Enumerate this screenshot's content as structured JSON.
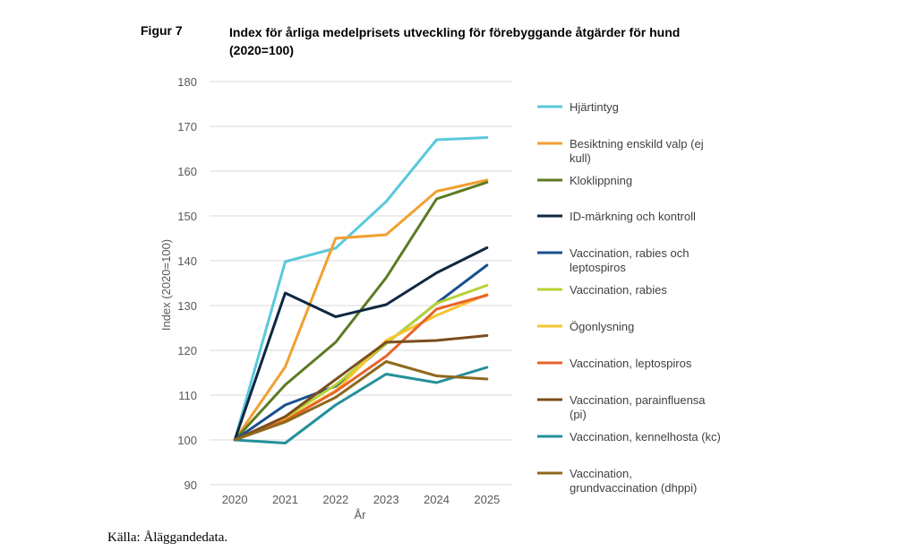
{
  "figure": {
    "label": "Figur 7",
    "title_line1": "Index för årliga medelprisets utveckling för förebyggande åtgärder för hund",
    "title_line2": "(2020=100)"
  },
  "source": "Källa: Åläggandedata.",
  "chart_data": {
    "type": "line",
    "title": "Index för årliga medelprisets utveckling för förebyggande åtgärder för hund (2020=100)",
    "xlabel": "År",
    "ylabel": "Index (2020=100)",
    "ylim": [
      90,
      180
    ],
    "yticks": [
      90,
      100,
      110,
      120,
      130,
      140,
      150,
      160,
      170,
      180
    ],
    "grid": true,
    "legend_position": "right",
    "categories": [
      "2020",
      "2021",
      "2022",
      "2023",
      "2024",
      "2025"
    ],
    "series": [
      {
        "name": "Hjärtintyg",
        "legend_lines": [
          "Hjärtintyg"
        ],
        "color": "#5ac8dc",
        "values": [
          100,
          139.8,
          142.8,
          153.2,
          167,
          167.5
        ]
      },
      {
        "name": "Besiktning enskild valp (ej kull)",
        "legend_lines": [
          "Besiktning enskild valp (ej",
          "kull)"
        ],
        "color": "#f0a030",
        "values": [
          100,
          116.3,
          145,
          145.8,
          155.5,
          158
        ]
      },
      {
        "name": "Kloklippning",
        "legend_lines": [
          "Kloklippning"
        ],
        "color": "#5c7a22",
        "values": [
          100,
          112.3,
          121.8,
          136.2,
          153.8,
          157.5
        ]
      },
      {
        "name": "ID-märkning och kontroll",
        "legend_lines": [
          "ID-märkning och kontroll"
        ],
        "color": "#0f2742",
        "values": [
          100,
          132.8,
          127.5,
          130.2,
          137.3,
          142.9
        ]
      },
      {
        "name": "Vaccination, rabies och leptospiros",
        "legend_lines": [
          "Vaccination, rabies och",
          "leptospiros"
        ],
        "color": "#1a4f8c",
        "values": [
          100,
          107.8,
          112,
          121.5,
          130.5,
          139
        ]
      },
      {
        "name": "Vaccination, rabies",
        "legend_lines": [
          "Vaccination, rabies"
        ],
        "color": "#b5d334",
        "values": [
          100,
          105,
          112.3,
          121.5,
          130.5,
          134.5
        ]
      },
      {
        "name": "Ögonlysning",
        "legend_lines": [
          "Ögonlysning"
        ],
        "color": "#f8c430",
        "values": [
          100,
          104.5,
          111,
          122.2,
          127.8,
          132.5
        ]
      },
      {
        "name": "Vaccination, leptospiros",
        "legend_lines": [
          "Vaccination, leptospiros"
        ],
        "color": "#e8632b",
        "values": [
          100,
          104.3,
          110.8,
          118.7,
          129.2,
          132.3
        ]
      },
      {
        "name": "Vaccination, parainfluensa (pi)",
        "legend_lines": [
          "Vaccination, parainfluensa",
          "(pi)"
        ],
        "color": "#7b4d1e",
        "values": [
          100,
          105.2,
          113.5,
          121.8,
          122.2,
          123.3
        ]
      },
      {
        "name": "Vaccination, kennelhosta (kc)",
        "legend_lines": [
          "Vaccination, kennelhosta (kc)"
        ],
        "color": "#23909a",
        "values": [
          100,
          99.3,
          107.8,
          114.7,
          112.8,
          116.2
        ]
      },
      {
        "name": "Vaccination, grundvaccination (dhppi)",
        "legend_lines": [
          "Vaccination,",
          "grundvaccination (dhppi)"
        ],
        "color": "#8f6a1c",
        "values": [
          100,
          104,
          109.5,
          117.5,
          114.3,
          113.6
        ]
      }
    ]
  }
}
